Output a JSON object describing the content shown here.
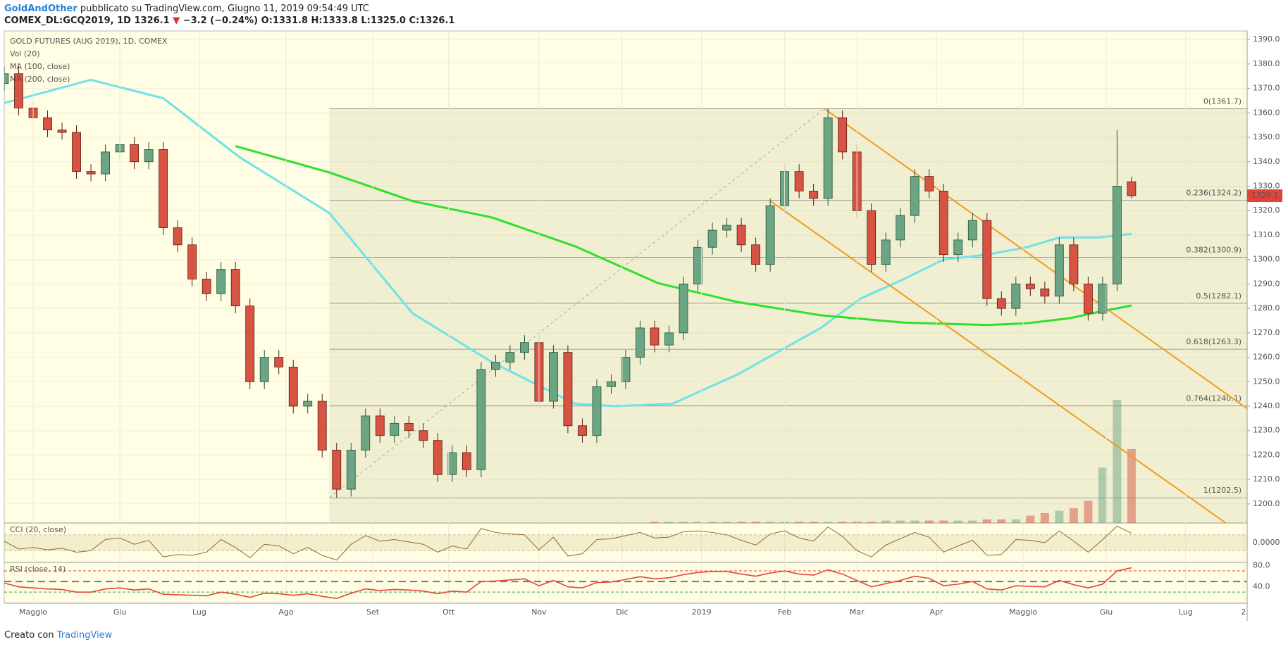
{
  "header": {
    "author": "GoldAndOther",
    "published": "pubblicato su TradingView.com, Giugno 11, 2019 09:54:49 UTC",
    "symbol": "COMEX_DL:GCQ2019, 1D",
    "last": "1326.1",
    "arrow": "▼",
    "change": "−3.2 (−0.24%)",
    "o_label": "O:",
    "o": "1331.8",
    "h_label": "H:",
    "h": "1333.8",
    "l_label": "L:",
    "l": "1325.0",
    "c_label": "C:",
    "c": "1326.1"
  },
  "footer": {
    "text": "Creato con",
    "brand": "TradingView"
  },
  "chart_data": {
    "type": "candlestick",
    "title": "GOLD FUTURES (AUG 2019), 1D, COMEX",
    "up_color": "#6ba583",
    "down_color": "#d75442",
    "up_wick": "#225437",
    "down_wick": "#5b1a13",
    "x": [
      0,
      4,
      8,
      12,
      16,
      20,
      24,
      28,
      32,
      36,
      40,
      44,
      48,
      52,
      56,
      60,
      64,
      68,
      72,
      76,
      80,
      84,
      88,
      92,
      96,
      100,
      104,
      108,
      112,
      116,
      120,
      124,
      128,
      132,
      136,
      140,
      144,
      148,
      152,
      156,
      160,
      164,
      168,
      172,
      176,
      180,
      184,
      188,
      192,
      196,
      200,
      204,
      208,
      212,
      216,
      220,
      224,
      228,
      232,
      236,
      240,
      244,
      248,
      252,
      256,
      260,
      264,
      268,
      272,
      276,
      280,
      284,
      288,
      292,
      296,
      300,
      304,
      308,
      312
    ],
    "open": [
      1372,
      1376,
      1362,
      1358,
      1353,
      1352,
      1336,
      1335,
      1344,
      1347,
      1340,
      1345,
      1313,
      1306,
      1292,
      1286,
      1296,
      1281,
      1250,
      1260,
      1256,
      1240,
      1242,
      1222,
      1206,
      1222,
      1236,
      1228,
      1233,
      1230,
      1226,
      1212,
      1221,
      1214,
      1255,
      1258,
      1262,
      1266,
      1242,
      1262,
      1232,
      1228,
      1248,
      1250,
      1260,
      1272,
      1265,
      1270,
      1290,
      1305,
      1312,
      1314,
      1306,
      1298,
      1322,
      1336,
      1328,
      1325,
      1358,
      1344,
      1320,
      1298,
      1308,
      1318,
      1334,
      1328,
      1302,
      1308,
      1316,
      1284,
      1280,
      1290,
      1288,
      1285,
      1306,
      1290,
      1278,
      1290,
      1331.8
    ],
    "high": [
      1379,
      1379,
      1365,
      1361,
      1356,
      1355,
      1339,
      1347,
      1350,
      1350,
      1348,
      1348,
      1316,
      1309,
      1295,
      1299,
      1299,
      1284,
      1263,
      1263,
      1259,
      1245,
      1245,
      1225,
      1225,
      1239,
      1239,
      1236,
      1236,
      1233,
      1229,
      1224,
      1224,
      1258,
      1261,
      1265,
      1269,
      1269,
      1265,
      1265,
      1235,
      1251,
      1253,
      1263,
      1275,
      1275,
      1273,
      1293,
      1308,
      1315,
      1317,
      1317,
      1309,
      1325,
      1339,
      1339,
      1331,
      1361.7,
      1361,
      1347,
      1323,
      1311,
      1321,
      1337,
      1337,
      1331,
      1311,
      1319,
      1319,
      1287,
      1293,
      1293,
      1291,
      1309,
      1309,
      1293,
      1293,
      1353,
      1333.8
    ],
    "low": [
      1369,
      1359,
      1355,
      1350,
      1349,
      1333,
      1332,
      1332,
      1341,
      1337,
      1337,
      1310,
      1303,
      1289,
      1283,
      1283,
      1278,
      1247,
      1247,
      1253,
      1237,
      1237,
      1219,
      1202.5,
      1203,
      1219,
      1225,
      1225,
      1227,
      1223,
      1209,
      1209,
      1211,
      1211,
      1252,
      1255,
      1259,
      1239,
      1239,
      1229,
      1225,
      1225,
      1245,
      1247,
      1257,
      1262,
      1262,
      1267,
      1287,
      1302,
      1309,
      1303,
      1295,
      1295,
      1319,
      1325,
      1322,
      1322,
      1341,
      1317,
      1295,
      1295,
      1305,
      1315,
      1325,
      1299,
      1299,
      1305,
      1281,
      1277,
      1277,
      1285,
      1282,
      1282,
      1287,
      1275,
      1275,
      1287,
      1325.0
    ],
    "close": [
      1376,
      1362,
      1358,
      1353,
      1352,
      1336,
      1335,
      1344,
      1347,
      1340,
      1345,
      1313,
      1306,
      1292,
      1286,
      1296,
      1281,
      1250,
      1260,
      1256,
      1240,
      1242,
      1222,
      1206,
      1222,
      1236,
      1228,
      1233,
      1230,
      1226,
      1212,
      1221,
      1214,
      1255,
      1258,
      1262,
      1266,
      1242,
      1262,
      1232,
      1228,
      1248,
      1250,
      1260,
      1272,
      1265,
      1270,
      1290,
      1305,
      1312,
      1314,
      1306,
      1298,
      1322,
      1336,
      1328,
      1325,
      1358,
      1344,
      1320,
      1298,
      1308,
      1318,
      1334,
      1328,
      1302,
      1308,
      1316,
      1284,
      1280,
      1290,
      1288,
      1285,
      1306,
      1290,
      1278,
      1290,
      1330,
      1326.1
    ],
    "volume_name": "Vol (20)",
    "volume": [
      0,
      0,
      0,
      0,
      0,
      0,
      0,
      0,
      0,
      0,
      0,
      0,
      0,
      0,
      0,
      0,
      0,
      0,
      0,
      0,
      0,
      0,
      0,
      0,
      0,
      0,
      0,
      0,
      0,
      0,
      0,
      0,
      0,
      0,
      0,
      0,
      0,
      0,
      0,
      0,
      0,
      0,
      0,
      0,
      0,
      1,
      1,
      1,
      1,
      1,
      1,
      1,
      1,
      1,
      1,
      1,
      1,
      1,
      1,
      1,
      1,
      2,
      2,
      2,
      2,
      2,
      2,
      2,
      3,
      3,
      3,
      6,
      8,
      10,
      12,
      18,
      45,
      100,
      60
    ],
    "xlim": [
      0,
      344
    ],
    "xticks": [
      {
        "value": 8,
        "label": "Maggio"
      },
      {
        "value": 32,
        "label": "Giu"
      },
      {
        "value": 54,
        "label": "Lug"
      },
      {
        "value": 78,
        "label": "Ago"
      },
      {
        "value": 102,
        "label": "Set"
      },
      {
        "value": 123,
        "label": "Ott"
      },
      {
        "value": 148,
        "label": "Nov"
      },
      {
        "value": 171,
        "label": "Dic"
      },
      {
        "value": 193,
        "label": "2019"
      },
      {
        "value": 216,
        "label": "Feb"
      },
      {
        "value": 236,
        "label": "Mar"
      },
      {
        "value": 258,
        "label": "Apr"
      },
      {
        "value": 282,
        "label": "Maggio"
      },
      {
        "value": 305,
        "label": "Giu"
      },
      {
        "value": 327,
        "label": "Lug"
      },
      {
        "value": 343,
        "label": "2"
      }
    ],
    "ylim": [
      1192.2,
      1393.5
    ],
    "yticks": [
      {
        "value": 1200,
        "label": "1200.0"
      },
      {
        "value": 1210,
        "label": "1210.0"
      },
      {
        "value": 1220,
        "label": "1220.0"
      },
      {
        "value": 1230,
        "label": "1230.0"
      },
      {
        "value": 1240,
        "label": "1240.0"
      },
      {
        "value": 1250,
        "label": "1250.0"
      },
      {
        "value": 1260,
        "label": "1260.0"
      },
      {
        "value": 1270,
        "label": "1270.0"
      },
      {
        "value": 1280,
        "label": "1280.0"
      },
      {
        "value": 1290,
        "label": "1290.0"
      },
      {
        "value": 1300,
        "label": "1300.0"
      },
      {
        "value": 1310,
        "label": "1310.0"
      },
      {
        "value": 1320,
        "label": "1320.0"
      },
      {
        "value": 1330,
        "label": "1330.0"
      },
      {
        "value": 1340,
        "label": "1340.0"
      },
      {
        "value": 1350,
        "label": "1350.0"
      },
      {
        "value": 1360,
        "label": "1360.0"
      },
      {
        "value": 1370,
        "label": "1370.0"
      },
      {
        "value": 1380,
        "label": "1380.0"
      },
      {
        "value": 1390,
        "label": "1390.0"
      }
    ],
    "grid": true,
    "last_price": 1326.1,
    "last_price_color": "#e0443a",
    "ma": [
      {
        "name": "MA (100, close)",
        "color": "#6fe3e8",
        "x": [
          0,
          24,
          44,
          65,
          90,
          113,
          135,
          158,
          169,
          185,
          203,
          226,
          237,
          249,
          260,
          272,
          283,
          292,
          303,
          312
        ],
        "values": [
          1364,
          1373.5,
          1366,
          1342,
          1319,
          1278,
          1258,
          1241,
          1240,
          1241,
          1253,
          1272,
          1284,
          1292,
          1300,
          1302,
          1305,
          1309,
          1309,
          1310.5
        ]
      },
      {
        "name": "MA (200, close)",
        "color": "#2ee02e",
        "x": [
          64,
          90,
          113,
          135,
          158,
          181,
          203,
          226,
          249,
          272,
          283,
          295,
          303,
          312
        ],
        "values": [
          1346.4,
          1335.6,
          1323.9,
          1317.2,
          1305.4,
          1290.3,
          1282.6,
          1277.2,
          1274.2,
          1273.2,
          1273.9,
          1276,
          1278.6,
          1281.2
        ]
      }
    ],
    "fib": {
      "x": [
        90,
        227
      ],
      "color": "#888888",
      "levels": [
        {
          "value": 1361.7,
          "label": "0(1361.7)"
        },
        {
          "value": 1324.2,
          "label": "0.236(1324.2)"
        },
        {
          "value": 1300.9,
          "label": "0.382(1300.9)"
        },
        {
          "value": 1282.1,
          "label": "0.5(1282.1)"
        },
        {
          "value": 1263.3,
          "label": "0.618(1263.3)"
        },
        {
          "value": 1240.1,
          "label": "0.764(1240.1)"
        },
        {
          "value": 1202.5,
          "label": "1(1202.5)"
        }
      ]
    },
    "channel": {
      "color": "#f39a1e",
      "lines": [
        {
          "x": [
            227,
            344
          ],
          "y": [
            1361.7,
            1239
          ]
        },
        {
          "x": [
            212,
            338
          ],
          "y": [
            1324,
            1192.3
          ]
        }
      ]
    },
    "cci": {
      "name": "CCI (20, close)",
      "color": "#8b6b2e",
      "ylim": [
        -250,
        250
      ],
      "yticks": [
        {
          "value": 0,
          "label": "0.0000"
        }
      ],
      "band": [
        -100,
        100
      ],
      "values": [
        20,
        -80,
        -60,
        -90,
        -70,
        -120,
        -100,
        40,
        60,
        -20,
        30,
        -180,
        -150,
        -160,
        -120,
        40,
        -60,
        -190,
        -20,
        -40,
        -140,
        -60,
        -160,
        -220,
        -20,
        90,
        20,
        40,
        10,
        -20,
        -120,
        -40,
        -80,
        180,
        130,
        110,
        100,
        -90,
        70,
        -170,
        -140,
        40,
        50,
        90,
        130,
        60,
        70,
        140,
        150,
        130,
        100,
        30,
        -30,
        110,
        150,
        60,
        20,
        200,
        80,
        -100,
        -180,
        -30,
        50,
        130,
        70,
        -120,
        -40,
        30,
        -160,
        -150,
        40,
        30,
        0,
        150,
        20,
        -120,
        40,
        210,
        120
      ]
    },
    "rsi": {
      "name": "RSI (close, 14)",
      "color": "#e8453a",
      "ylim": [
        9,
        86
      ],
      "yticks": [
        {
          "value": 80,
          "label": "80.0"
        },
        {
          "value": 40,
          "label": "40.0"
        }
      ],
      "levels": [
        {
          "value": 70,
          "color": "#e0443a"
        },
        {
          "value": 50,
          "color": "#777777"
        },
        {
          "value": 30,
          "color": "#3aa040"
        }
      ],
      "values": [
        47,
        40,
        38,
        36,
        35,
        30,
        30,
        36,
        38,
        34,
        36,
        26,
        25,
        24,
        23,
        30,
        26,
        20,
        28,
        27,
        24,
        27,
        22,
        18,
        28,
        36,
        33,
        35,
        34,
        32,
        27,
        32,
        30,
        50,
        51,
        53,
        55,
        42,
        52,
        40,
        38,
        48,
        49,
        54,
        59,
        55,
        57,
        63,
        67,
        69,
        69,
        64,
        60,
        66,
        70,
        64,
        62,
        72,
        64,
        52,
        40,
        46,
        52,
        60,
        56,
        42,
        45,
        50,
        36,
        34,
        42,
        41,
        40,
        52,
        44,
        38,
        45,
        70,
        76
      ]
    }
  }
}
